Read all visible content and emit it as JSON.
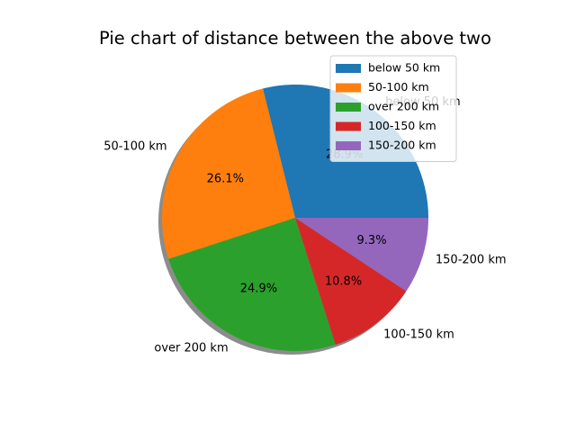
{
  "chart_data": {
    "type": "pie",
    "title": "Pie chart of distance between the above two",
    "categories": [
      "below 50 km",
      "50-100 km",
      "over 200 km",
      "100-150 km",
      "150-200 km"
    ],
    "values": [
      28.9,
      26.1,
      24.9,
      10.8,
      9.3
    ],
    "percent_labels": [
      "28.9%",
      "26.1%",
      "24.9%",
      "10.8%",
      "9.3%"
    ],
    "colors": [
      "#1f77b4",
      "#ff7f0e",
      "#2ca02c",
      "#d62728",
      "#9467bd"
    ],
    "start_angle_deg": 0,
    "direction": "counterclockwise",
    "shadow": true,
    "legend": {
      "placement": "upper right",
      "entries": [
        "below 50 km",
        "50-100 km",
        "over 200 km",
        "100-150 km",
        "150-200 km"
      ]
    }
  }
}
